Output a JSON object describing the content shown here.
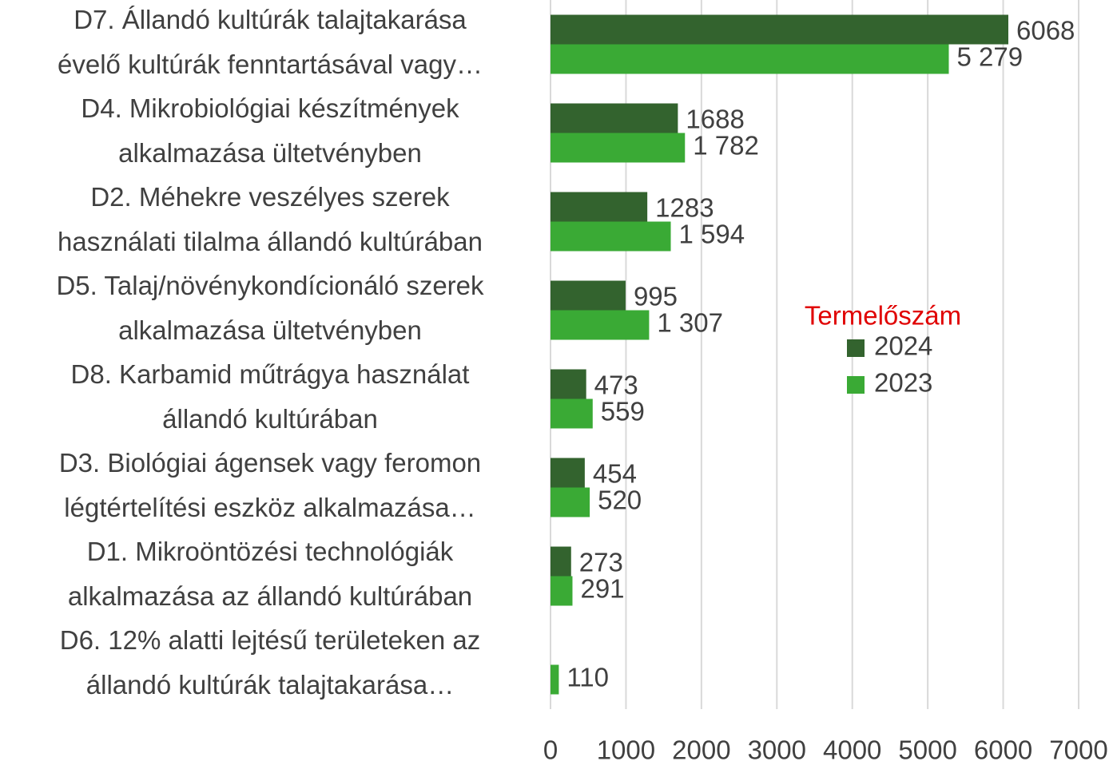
{
  "chart_data": {
    "type": "barh",
    "categories": [
      [
        "D7. Állandó kultúrák talajtakarása",
        "évelő kultúrák fenntartásával vagy…"
      ],
      [
        "D4. Mikrobiológiai készítmények",
        "alkalmazása ültetvényben"
      ],
      [
        "D2. Méhekre veszélyes szerek",
        "használati tilalma állandó kultúrában"
      ],
      [
        "D5. Talaj/növénykondícionáló szerek",
        "alkalmazása ültetvényben"
      ],
      [
        "D8. Karbamid műtrágya használat",
        "állandó kultúrában"
      ],
      [
        "D3. Biológiai ágensek vagy feromon",
        "légtértelítési eszköz alkalmazása…"
      ],
      [
        "D1. Mikroöntözési technológiák",
        "alkalmazása az állandó kultúrában"
      ],
      [
        "D6. 12% alatti lejtésű területeken az",
        "állandó kultúrák talajtakarása…"
      ]
    ],
    "series": [
      {
        "name": "2024",
        "color": "#33632e",
        "values": [
          6068,
          1688,
          1283,
          995,
          473,
          454,
          273,
          null
        ]
      },
      {
        "name": "2023",
        "color": "#3aaa35",
        "values": [
          5279,
          1782,
          1594,
          1307,
          559,
          520,
          291,
          110
        ],
        "value_labels": [
          "5 279",
          "1 782",
          "1 594",
          "1 307",
          "559",
          "520",
          "291",
          "110"
        ]
      }
    ],
    "legend_title": "Termelőszám",
    "xlim": [
      0,
      7000
    ],
    "xticks": [
      0,
      1000,
      2000,
      3000,
      4000,
      5000,
      6000,
      7000
    ],
    "grid": true
  }
}
